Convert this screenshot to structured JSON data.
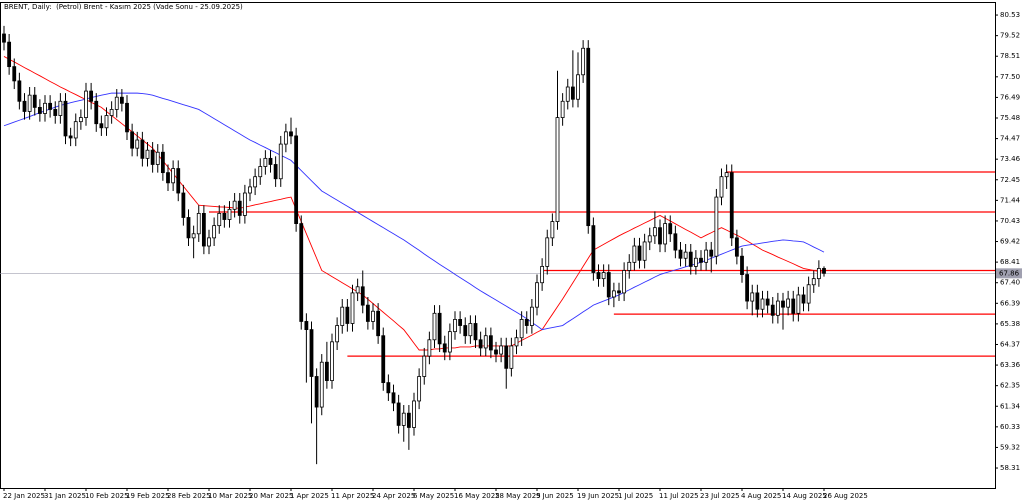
{
  "chart_data": {
    "type": "candlestick",
    "title": "BRENT, Daily:  (Petrol) Brent - Kasım 2025 (Vade Sonu - 25.09.2025)",
    "categories": [
      "22 Jan 2025",
      null,
      null,
      null,
      null,
      null,
      null,
      null,
      "31 Jan 2025",
      null,
      null,
      null,
      null,
      null,
      null,
      null,
      "10 Feb 2025",
      null,
      null,
      null,
      null,
      null,
      null,
      null,
      "19 Feb 2025",
      null,
      null,
      null,
      null,
      null,
      null,
      null,
      "28 Feb 2025",
      null,
      null,
      null,
      null,
      null,
      null,
      null,
      "10 Mar 2025",
      null,
      null,
      null,
      null,
      null,
      null,
      null,
      "20 Mar 2025",
      null,
      null,
      null,
      null,
      null,
      null,
      null,
      "1 Apr 2025",
      null,
      null,
      null,
      null,
      null,
      null,
      null,
      "11 Apr 2025",
      null,
      null,
      null,
      null,
      null,
      null,
      null,
      "24 Apr 2025",
      null,
      null,
      null,
      null,
      null,
      null,
      null,
      "6 May 2025",
      null,
      null,
      null,
      null,
      null,
      null,
      null,
      "16 May 2025",
      null,
      null,
      null,
      null,
      null,
      null,
      null,
      "28 May 2025",
      null,
      null,
      null,
      null,
      null,
      null,
      null,
      "9 Jun 2025",
      null,
      null,
      null,
      null,
      null,
      null,
      null,
      "19 Jun 2025",
      null,
      null,
      null,
      null,
      null,
      null,
      null,
      "1 Jul 2025",
      null,
      null,
      null,
      null,
      null,
      null,
      null,
      "11 Jul 2025",
      null,
      null,
      null,
      null,
      null,
      null,
      null,
      "23 Jul 2025",
      null,
      null,
      null,
      null,
      null,
      null,
      null,
      "4 Aug 2025",
      null,
      null,
      null,
      null,
      null,
      null,
      null,
      "14 Aug 2025",
      null,
      null,
      null,
      null,
      null,
      null,
      null,
      "26 Aug 2025"
    ],
    "open": [
      79.6,
      79.2,
      78.0,
      77.3,
      76.3,
      75.8,
      76.6,
      76.0,
      75.7,
      76.2,
      75.9,
      75.6,
      76.3,
      74.6,
      74.5,
      75.3,
      75.5,
      76.8,
      76.3,
      75.2,
      75.0,
      75.6,
      75.9,
      76.5,
      76.2,
      74.8,
      74.0,
      74.4,
      73.5,
      73.9,
      73.2,
      73.8,
      72.8,
      72.3,
      73.0,
      71.8,
      70.6,
      69.6,
      69.8,
      70.8,
      69.2,
      69.6,
      70.2,
      70.8,
      70.5,
      71.0,
      71.4,
      70.7,
      71.8,
      72.1,
      72.6,
      73.1,
      73.5,
      73.2,
      72.5,
      74.2,
      74.8,
      74.6,
      70.3,
      65.5,
      65.1,
      62.8,
      61.3,
      63.5,
      62.6,
      64.5,
      65.3,
      66.2,
      65.4,
      66.9,
      67.2,
      66.3,
      65.5,
      66.0,
      64.8,
      62.5,
      62.0,
      61.5,
      60.4,
      61.0,
      60.3,
      61.6,
      62.8,
      63.8,
      64.6,
      65.9,
      64.4,
      64.0,
      65.0,
      65.6,
      65.3,
      64.8,
      65.4,
      64.6,
      64.2,
      64.8,
      64.1,
      63.9,
      64.3,
      63.2,
      64.3,
      64.7,
      65.6,
      65.3,
      66.2,
      67.4,
      68.2,
      69.6,
      70.4,
      75.5,
      76.3,
      77.0,
      76.4,
      77.6,
      78.9,
      70.2,
      67.9,
      67.6,
      67.9,
      66.7,
      67.0,
      66.9,
      68.0,
      68.4,
      69.2,
      68.5,
      69.4,
      69.7,
      70.1,
      69.3,
      70.3,
      69.8,
      69.0,
      68.6,
      68.9,
      68.2,
      68.6,
      68.4,
      69.0,
      68.7,
      71.6,
      72.6,
      72.8,
      69.6,
      68.7,
      67.8,
      66.5,
      66.9,
      66.1,
      66.6,
      66.3,
      65.8,
      66.5,
      66.2,
      66.6,
      65.9,
      66.8,
      66.4,
      67.3,
      67.6,
      68.1
    ],
    "high": [
      80.0,
      79.6,
      78.4,
      77.7,
      76.7,
      77.0,
      77.0,
      76.4,
      76.6,
      76.6,
      76.3,
      76.7,
      76.7,
      75.0,
      75.7,
      75.9,
      77.2,
      77.2,
      76.7,
      75.6,
      76.0,
      76.3,
      76.9,
      76.9,
      76.6,
      75.2,
      74.8,
      74.8,
      74.3,
      74.3,
      74.2,
      74.2,
      73.2,
      73.4,
      73.4,
      72.2,
      71.0,
      70.2,
      71.2,
      71.2,
      70.0,
      70.6,
      71.2,
      71.2,
      71.4,
      71.8,
      71.8,
      72.2,
      72.5,
      73.0,
      73.5,
      73.9,
      73.9,
      73.6,
      74.6,
      75.2,
      75.5,
      75.0,
      70.7,
      65.9,
      65.5,
      63.2,
      63.9,
      64.5,
      64.9,
      65.7,
      66.6,
      66.6,
      67.3,
      67.6,
      68.0,
      66.7,
      66.4,
      66.4,
      65.2,
      62.9,
      62.4,
      61.9,
      61.4,
      61.4,
      62.0,
      63.2,
      64.2,
      65.0,
      66.3,
      66.3,
      64.8,
      65.4,
      66.0,
      66.0,
      65.7,
      65.8,
      65.8,
      65.0,
      65.2,
      65.2,
      64.5,
      64.7,
      64.7,
      64.7,
      65.1,
      66.0,
      66.0,
      66.6,
      67.8,
      68.6,
      70.0,
      70.8,
      77.8,
      76.7,
      77.4,
      78.8,
      78.7,
      79.3,
      79.3,
      70.6,
      68.3,
      68.3,
      68.3,
      67.4,
      67.4,
      68.4,
      68.8,
      69.6,
      69.6,
      69.8,
      70.1,
      70.9,
      70.5,
      70.7,
      70.7,
      70.2,
      69.4,
      69.3,
      69.3,
      69.0,
      69.0,
      69.4,
      69.4,
      72.0,
      73.0,
      73.2,
      73.2,
      70.0,
      69.1,
      68.2,
      67.3,
      67.3,
      67.0,
      67.0,
      66.7,
      66.9,
      66.9,
      67.0,
      67.0,
      67.2,
      67.2,
      67.7,
      68.0,
      68.5,
      68.2
    ],
    "low": [
      78.8,
      77.6,
      76.9,
      75.9,
      75.4,
      75.4,
      75.6,
      75.3,
      75.3,
      75.5,
      75.2,
      75.2,
      74.2,
      74.1,
      74.1,
      74.9,
      75.1,
      75.9,
      74.8,
      74.6,
      74.6,
      75.2,
      75.5,
      75.8,
      74.4,
      73.6,
      73.6,
      73.1,
      73.1,
      72.8,
      72.8,
      72.4,
      71.9,
      71.9,
      71.4,
      70.2,
      69.2,
      68.6,
      69.4,
      68.8,
      68.8,
      69.2,
      69.8,
      70.1,
      70.1,
      70.6,
      70.3,
      70.3,
      71.4,
      71.7,
      72.2,
      72.7,
      72.8,
      72.1,
      72.1,
      73.8,
      74.2,
      69.9,
      65.1,
      62.5,
      60.5,
      58.5,
      60.9,
      62.2,
      62.2,
      64.1,
      64.9,
      65.0,
      65.0,
      66.5,
      65.9,
      65.1,
      65.1,
      64.4,
      62.1,
      61.6,
      61.1,
      60.0,
      59.6,
      59.2,
      59.9,
      61.2,
      62.4,
      63.4,
      64.2,
      64.0,
      63.6,
      63.6,
      64.6,
      64.9,
      64.4,
      64.4,
      64.2,
      63.8,
      63.8,
      63.7,
      63.5,
      63.5,
      62.2,
      62.8,
      63.9,
      64.3,
      64.9,
      64.9,
      65.8,
      67.0,
      67.8,
      69.2,
      70.0,
      75.1,
      75.9,
      76.0,
      76.0,
      77.2,
      69.8,
      67.5,
      67.2,
      67.2,
      66.3,
      66.2,
      66.5,
      66.5,
      67.6,
      68.0,
      68.1,
      68.1,
      69.0,
      69.3,
      68.9,
      68.9,
      69.4,
      68.6,
      68.2,
      68.2,
      67.8,
      67.8,
      68.0,
      68.0,
      67.9,
      68.3,
      71.2,
      72.0,
      69.2,
      68.3,
      67.4,
      66.1,
      65.8,
      65.7,
      65.7,
      65.9,
      65.4,
      65.4,
      65.1,
      65.8,
      65.5,
      65.5,
      66.0,
      66.0,
      66.9,
      67.2,
      67.7
    ],
    "close": [
      79.2,
      78.0,
      77.3,
      76.3,
      75.8,
      76.6,
      76.0,
      75.7,
      76.2,
      75.9,
      75.6,
      76.3,
      74.6,
      74.5,
      75.3,
      75.5,
      76.8,
      76.3,
      75.2,
      75.0,
      75.6,
      75.9,
      76.5,
      76.2,
      74.8,
      74.0,
      74.4,
      73.5,
      73.9,
      73.2,
      73.8,
      72.8,
      72.3,
      73.0,
      71.8,
      70.6,
      69.6,
      69.8,
      70.8,
      69.2,
      69.6,
      70.2,
      70.8,
      70.5,
      71.0,
      71.4,
      70.7,
      71.8,
      72.1,
      72.6,
      73.1,
      73.5,
      73.2,
      72.5,
      74.2,
      74.8,
      74.6,
      70.3,
      65.5,
      65.1,
      62.8,
      61.3,
      63.5,
      62.6,
      64.5,
      65.3,
      66.2,
      65.4,
      66.9,
      67.2,
      66.3,
      65.5,
      66.0,
      64.8,
      62.5,
      62.0,
      61.5,
      60.4,
      61.0,
      60.3,
      61.6,
      62.8,
      63.8,
      64.6,
      65.9,
      64.4,
      64.0,
      65.0,
      65.6,
      65.3,
      64.8,
      65.4,
      64.6,
      64.2,
      64.8,
      64.1,
      63.9,
      64.3,
      63.2,
      64.3,
      64.7,
      65.6,
      65.3,
      66.2,
      67.4,
      68.2,
      69.6,
      70.4,
      75.5,
      76.3,
      77.0,
      76.4,
      77.6,
      78.9,
      70.2,
      67.9,
      67.6,
      67.9,
      66.7,
      67.0,
      66.9,
      68.0,
      68.4,
      69.2,
      68.5,
      69.4,
      69.7,
      70.1,
      69.3,
      70.3,
      69.8,
      69.0,
      68.6,
      68.9,
      68.2,
      68.6,
      68.4,
      69.0,
      68.7,
      71.6,
      72.6,
      72.8,
      69.6,
      68.7,
      67.8,
      66.5,
      66.9,
      66.1,
      66.6,
      66.3,
      65.8,
      66.5,
      66.2,
      66.6,
      65.9,
      66.8,
      66.4,
      67.3,
      67.6,
      68.1,
      67.86
    ],
    "series": [
      {
        "color": "#ff0000",
        "values": [
          78.5,
          78.36,
          78.23,
          78.09,
          77.95,
          77.82,
          77.68,
          77.55,
          77.41,
          77.27,
          77.14,
          77.0,
          76.88,
          76.75,
          76.63,
          76.5,
          76.38,
          76.25,
          76.13,
          76.0,
          75.8,
          75.6,
          75.4,
          75.2,
          75.0,
          74.8,
          74.6,
          74.4,
          74.2,
          74.0,
          73.69,
          73.38,
          73.07,
          72.76,
          72.44,
          72.13,
          71.82,
          71.51,
          71.2,
          71.18,
          71.16,
          71.14,
          71.12,
          71.11,
          71.09,
          71.07,
          71.05,
          71.11,
          71.16,
          71.22,
          71.27,
          71.33,
          71.38,
          71.44,
          71.49,
          71.55,
          71.6,
          71.0,
          70.4,
          69.8,
          69.2,
          68.6,
          68.0,
          67.85,
          67.7,
          67.55,
          67.4,
          67.25,
          67.1,
          66.95,
          66.8,
          66.59,
          66.38,
          66.16,
          65.95,
          65.74,
          65.53,
          65.31,
          65.1,
          64.77,
          64.43,
          64.1,
          64.1,
          64.1,
          64.15,
          64.15,
          64.2,
          64.2,
          64.2,
          64.25,
          64.25,
          64.25,
          64.3,
          64.3,
          64.3,
          64.3,
          64.3,
          64.3,
          64.3,
          64.3,
          64.43,
          64.57,
          64.7,
          64.83,
          64.97,
          65.1,
          65.48,
          65.85,
          66.23,
          66.6,
          67.0,
          67.4,
          67.8,
          68.2,
          68.6,
          69.0,
          69.14,
          69.28,
          69.42,
          69.56,
          69.7,
          69.83,
          69.95,
          70.08,
          70.2,
          70.33,
          70.45,
          70.58,
          70.7,
          70.56,
          70.43,
          70.29,
          70.15,
          70.01,
          69.88,
          69.74,
          69.6,
          69.73,
          69.85,
          69.98,
          70.1,
          69.98,
          69.85,
          69.73,
          69.6,
          69.45,
          69.3,
          69.15,
          69.0,
          68.89,
          68.78,
          68.66,
          68.55,
          68.44,
          68.33,
          68.21,
          68.1,
          68.05,
          68.0,
          67.95,
          67.9
        ]
      },
      {
        "color": "#3333ff",
        "values": [
          75.1,
          75.19,
          75.28,
          75.37,
          75.46,
          75.55,
          75.65,
          75.74,
          75.83,
          75.92,
          76.01,
          76.1,
          76.16,
          76.23,
          76.29,
          76.35,
          76.41,
          76.48,
          76.54,
          76.6,
          76.65,
          76.7,
          76.7,
          76.7,
          76.7,
          76.7,
          76.7,
          76.68,
          76.65,
          76.6,
          76.52,
          76.44,
          76.37,
          76.29,
          76.21,
          76.13,
          76.06,
          75.98,
          75.9,
          75.75,
          75.6,
          75.45,
          75.3,
          75.15,
          75.0,
          74.85,
          74.7,
          74.55,
          74.4,
          74.28,
          74.15,
          74.03,
          73.9,
          73.78,
          73.65,
          73.53,
          73.4,
          73.15,
          72.9,
          72.65,
          72.4,
          72.15,
          71.9,
          71.75,
          71.6,
          71.45,
          71.3,
          71.15,
          71.0,
          70.85,
          70.7,
          70.55,
          70.4,
          70.25,
          70.1,
          69.95,
          69.8,
          69.65,
          69.5,
          69.33,
          69.16,
          68.99,
          68.81,
          68.64,
          68.47,
          68.3,
          68.14,
          67.98,
          67.81,
          67.65,
          67.49,
          67.33,
          67.16,
          67.0,
          66.85,
          66.7,
          66.55,
          66.4,
          66.25,
          66.1,
          65.95,
          65.8,
          65.63,
          65.45,
          65.28,
          65.1,
          65.15,
          65.2,
          65.25,
          65.3,
          65.47,
          65.63,
          65.8,
          65.97,
          66.13,
          66.3,
          66.4,
          66.5,
          66.6,
          66.7,
          66.8,
          66.93,
          67.05,
          67.18,
          67.3,
          67.43,
          67.55,
          67.68,
          67.8,
          67.88,
          67.95,
          68.03,
          68.1,
          68.18,
          68.25,
          68.33,
          68.4,
          68.5,
          68.6,
          68.7,
          68.8,
          68.9,
          69.0,
          69.1,
          69.2,
          69.24,
          69.28,
          69.31,
          69.35,
          69.39,
          69.43,
          69.46,
          69.5,
          69.48,
          69.45,
          69.43,
          69.4,
          69.28,
          69.15,
          69.03,
          68.9
        ]
      }
    ],
    "levels": [
      {
        "value": 72.83,
        "from": 141
      },
      {
        "value": 70.87,
        "from": 40
      },
      {
        "value": 68.0,
        "from": 105
      },
      {
        "value": 65.86,
        "from": 119
      },
      {
        "value": 63.8,
        "from": 67
      }
    ],
    "level_color": "#ff0000",
    "up_color": "#ffffff",
    "down_color": "#000000",
    "ylim": [
      57.33,
      81.17
    ],
    "yticks": [
      80.53,
      79.52,
      78.51,
      {
        "value": 77.5,
        "label": "77.50"
      },
      76.49,
      75.48,
      74.47,
      73.46,
      72.45,
      71.44,
      70.43,
      69.42,
      68.41,
      {
        "value": 67.4,
        "label": "67.40"
      },
      66.39,
      65.38,
      64.37,
      63.36,
      62.35,
      61.34,
      60.33,
      59.32,
      58.31
    ]
  }
}
